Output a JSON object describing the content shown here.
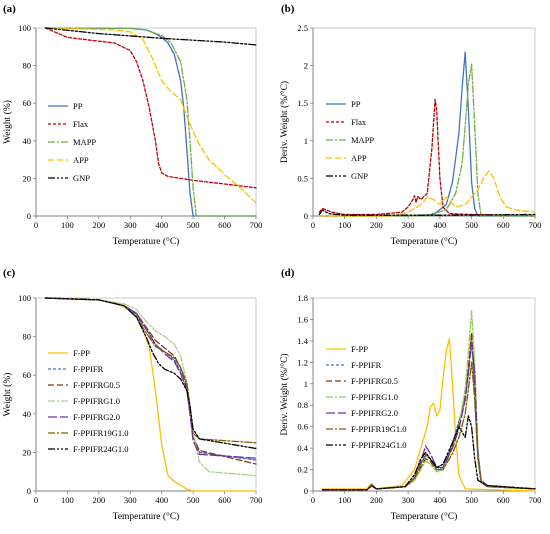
{
  "figure": {
    "panels": [
      "(a)",
      "(b)",
      "(c)",
      "(d)"
    ]
  },
  "chart_data": [
    {
      "panel": "(a)",
      "type": "line",
      "xlabel": "Temperature (°C)",
      "ylabel": "Weight (%)",
      "xlim": [
        0,
        700
      ],
      "ylim": [
        0,
        100
      ],
      "xticks": [
        0,
        100,
        200,
        300,
        400,
        500,
        600,
        700
      ],
      "yticks": [
        0,
        20,
        40,
        60,
        80,
        100
      ],
      "legend_position": "left",
      "series": [
        {
          "name": "PP",
          "color": "#4472c4",
          "dash": "solid",
          "x": [
            30,
            300,
            350,
            380,
            400,
            420,
            440,
            460,
            470,
            480,
            490,
            500,
            700
          ],
          "y": [
            100,
            99.8,
            99,
            97,
            95,
            92,
            86,
            72,
            58,
            35,
            12,
            0,
            0
          ]
        },
        {
          "name": "Flax",
          "color": "#c00000",
          "dash": "shortdash",
          "x": [
            30,
            100,
            200,
            250,
            300,
            320,
            340,
            360,
            380,
            390,
            400,
            420,
            500,
            600,
            700
          ],
          "y": [
            100,
            95,
            93,
            92,
            88,
            82,
            72,
            58,
            40,
            28,
            23,
            21,
            19,
            17,
            15
          ]
        },
        {
          "name": "MAPP",
          "color": "#70ad47",
          "dash": "dashdot",
          "x": [
            30,
            300,
            350,
            400,
            430,
            460,
            480,
            490,
            500,
            510,
            700
          ],
          "y": [
            100,
            99.8,
            99,
            96,
            92,
            82,
            62,
            40,
            15,
            0,
            0
          ]
        },
        {
          "name": "APP",
          "color": "#ffc000",
          "dash": "dash",
          "x": [
            30,
            250,
            300,
            340,
            370,
            400,
            430,
            460,
            480,
            500,
            520,
            550,
            600,
            650,
            700
          ],
          "y": [
            100,
            99,
            98,
            94,
            84,
            72,
            66,
            62,
            53,
            45,
            38,
            30,
            22,
            15,
            7
          ]
        },
        {
          "name": "GNP",
          "color": "#000000",
          "dash": "dashdotdot",
          "x": [
            30,
            200,
            400,
            600,
            700
          ],
          "y": [
            100,
            97,
            94.5,
            92.5,
            91
          ]
        }
      ]
    },
    {
      "panel": "(b)",
      "type": "line",
      "xlabel": "Temperature (°C)",
      "ylabel": "Deriv. Weight (%/°C)",
      "xlim": [
        0,
        700
      ],
      "ylim": [
        0,
        2.5
      ],
      "xticks": [
        0,
        100,
        200,
        300,
        400,
        500,
        600,
        700
      ],
      "yticks": [
        0,
        0.5,
        1,
        1.5,
        2,
        2.5
      ],
      "ytick_labels": [
        "0",
        "0.5",
        "1",
        "1.5",
        "2",
        "2.5"
      ],
      "legend_position": "left",
      "series": [
        {
          "name": "PP",
          "color": "#4472c4",
          "dash": "solid",
          "x": [
            20,
            300,
            380,
            420,
            440,
            460,
            470,
            480,
            490,
            500,
            510,
            520,
            700
          ],
          "y": [
            0,
            0,
            0.02,
            0.15,
            0.45,
            1.1,
            1.7,
            2.18,
            1.4,
            0.45,
            0.1,
            0,
            0
          ]
        },
        {
          "name": "Flax",
          "color": "#c00000",
          "dash": "shortdash",
          "x": [
            20,
            30,
            60,
            100,
            200,
            280,
            300,
            315,
            320,
            325,
            330,
            340,
            360,
            375,
            385,
            390,
            400,
            410,
            430,
            500,
            600,
            700
          ],
          "y": [
            0.05,
            0.1,
            0.05,
            0.02,
            0.02,
            0.05,
            0.12,
            0.22,
            0.27,
            0.18,
            0.26,
            0.22,
            0.3,
            0.9,
            1.55,
            1.4,
            0.5,
            0.12,
            0.03,
            0.02,
            0.01,
            0
          ]
        },
        {
          "name": "MAPP",
          "color": "#70ad47",
          "dash": "dashdot",
          "x": [
            20,
            350,
            420,
            450,
            470,
            480,
            490,
            500,
            510,
            520,
            530,
            700
          ],
          "y": [
            0,
            0,
            0.08,
            0.3,
            0.7,
            1.2,
            1.75,
            2.02,
            1.2,
            0.3,
            0,
            0
          ]
        },
        {
          "name": "APP",
          "color": "#ffc000",
          "dash": "dash",
          "x": [
            20,
            250,
            300,
            320,
            340,
            360,
            380,
            400,
            420,
            450,
            480,
            500,
            520,
            540,
            555,
            570,
            590,
            610,
            640,
            700
          ],
          "y": [
            0,
            0,
            0.05,
            0.1,
            0.15,
            0.25,
            0.22,
            0.15,
            0.25,
            0.12,
            0.15,
            0.25,
            0.35,
            0.52,
            0.6,
            0.5,
            0.25,
            0.12,
            0.08,
            0.05
          ]
        },
        {
          "name": "GNP",
          "color": "#000000",
          "dash": "dashdotdot",
          "x": [
            20,
            30,
            50,
            100,
            200,
            400,
            700
          ],
          "y": [
            0.02,
            0.08,
            0.03,
            0.01,
            0.01,
            0.01,
            0.02
          ]
        }
      ]
    },
    {
      "panel": "(c)",
      "type": "line",
      "xlabel": "Temperature (°C)",
      "ylabel": "Weight (%)",
      "xlim": [
        0,
        700
      ],
      "ylim": [
        0,
        100
      ],
      "xticks": [
        0,
        100,
        200,
        300,
        400,
        500,
        600,
        700
      ],
      "yticks": [
        0,
        20,
        40,
        60,
        80,
        100
      ],
      "legend_position": "left",
      "series": [
        {
          "name": "F-PP",
          "color": "#ffc000",
          "dash": "solid",
          "x": [
            30,
            200,
            250,
            300,
            330,
            360,
            380,
            400,
            420,
            440,
            460,
            480,
            500,
            700
          ],
          "y": [
            100,
            99,
            97.5,
            94,
            88,
            75,
            52,
            24,
            8,
            5,
            3,
            1,
            0,
            0
          ]
        },
        {
          "name": "F-PPIFR",
          "color": "#4472c4",
          "dash": "shortdash",
          "x": [
            30,
            200,
            280,
            320,
            350,
            380,
            410,
            440,
            460,
            480,
            490,
            500,
            520,
            700
          ],
          "y": [
            100,
            99,
            96,
            91,
            84,
            76,
            72,
            68,
            62,
            52,
            40,
            28,
            20,
            16
          ]
        },
        {
          "name": "F-PPIFRG0.5",
          "color": "#843c0c",
          "dash": "dash",
          "x": [
            30,
            200,
            280,
            320,
            350,
            380,
            410,
            440,
            460,
            480,
            490,
            500,
            520,
            700
          ],
          "y": [
            100,
            99,
            96,
            92,
            85,
            78,
            74,
            70,
            64,
            54,
            42,
            28,
            21,
            14
          ]
        },
        {
          "name": "F-PPIFRG1.0",
          "color": "#a9d18e",
          "dash": "dashdot",
          "x": [
            30,
            200,
            280,
            320,
            350,
            380,
            410,
            440,
            460,
            480,
            500,
            520,
            550,
            700
          ],
          "y": [
            100,
            99,
            97,
            94,
            88,
            83,
            80,
            76,
            70,
            56,
            30,
            15,
            10,
            8
          ]
        },
        {
          "name": "F-PPIFRG2.0",
          "color": "#7030a0",
          "dash": "longdash",
          "x": [
            30,
            200,
            280,
            320,
            350,
            380,
            410,
            440,
            460,
            480,
            490,
            500,
            520,
            700
          ],
          "y": [
            100,
            99,
            96,
            92,
            84,
            76,
            71,
            67,
            61,
            52,
            40,
            26,
            19,
            17
          ]
        },
        {
          "name": "F-PPIFR19G1.0",
          "color": "#7f6000",
          "dash": "dashdot",
          "x": [
            30,
            200,
            280,
            320,
            350,
            380,
            410,
            440,
            460,
            480,
            490,
            500,
            520,
            700
          ],
          "y": [
            100,
            99,
            96,
            90,
            82,
            75,
            72,
            69,
            64,
            56,
            44,
            30,
            27,
            25
          ]
        },
        {
          "name": "F-PPIFR24G1.0",
          "color": "#000000",
          "dash": "dashdotdot",
          "x": [
            30,
            200,
            280,
            320,
            350,
            370,
            390,
            410,
            440,
            460,
            480,
            490,
            500,
            520,
            700
          ],
          "y": [
            100,
            99,
            96,
            90,
            80,
            72,
            66,
            63,
            61,
            58,
            52,
            44,
            32,
            27,
            22
          ]
        }
      ]
    },
    {
      "panel": "(d)",
      "type": "line",
      "xlabel": "Temperature (°C)",
      "ylabel": "Deriv. Weight (%/°C)",
      "xlim": [
        0,
        700
      ],
      "ylim": [
        0,
        1.8
      ],
      "xticks": [
        0,
        100,
        200,
        300,
        400,
        500,
        600,
        700
      ],
      "yticks": [
        0,
        0.2,
        0.4,
        0.6,
        0.8,
        1.0,
        1.2,
        1.4,
        1.6,
        1.8
      ],
      "ytick_labels": [
        "0",
        "0.2",
        "0.4",
        "0.6",
        "0.8",
        "1",
        "1.2",
        "1.4",
        "1.6",
        "1.8"
      ],
      "legend_position": "left",
      "series": [
        {
          "name": "F-PP",
          "color": "#ffc000",
          "dash": "solid",
          "x": [
            30,
            170,
            180,
            185,
            190,
            200,
            280,
            320,
            340,
            360,
            370,
            380,
            390,
            400,
            410,
            420,
            430,
            440,
            450,
            460,
            480,
            700
          ],
          "y": [
            0.02,
            0.02,
            0.06,
            0.07,
            0.05,
            0.02,
            0.05,
            0.2,
            0.4,
            0.6,
            0.78,
            0.82,
            0.7,
            0.75,
            1.05,
            1.3,
            1.42,
            1.0,
            0.5,
            0.15,
            0.02,
            0
          ]
        },
        {
          "name": "F-PPIFR",
          "color": "#4472c4",
          "dash": "shortdash",
          "x": [
            30,
            170,
            185,
            200,
            290,
            320,
            340,
            355,
            370,
            390,
            410,
            440,
            460,
            480,
            490,
            500,
            510,
            520,
            530,
            550,
            700
          ],
          "y": [
            0.01,
            0.01,
            0.06,
            0.02,
            0.04,
            0.12,
            0.25,
            0.35,
            0.3,
            0.2,
            0.22,
            0.45,
            0.65,
            0.85,
            1.1,
            1.45,
            0.9,
            0.3,
            0.08,
            0.04,
            0.02
          ]
        },
        {
          "name": "F-PPIFRG0.5",
          "color": "#843c0c",
          "dash": "dash",
          "x": [
            30,
            170,
            185,
            200,
            290,
            320,
            340,
            355,
            370,
            390,
            410,
            440,
            460,
            480,
            490,
            500,
            510,
            520,
            530,
            550,
            700
          ],
          "y": [
            0.01,
            0.01,
            0.05,
            0.02,
            0.04,
            0.1,
            0.22,
            0.3,
            0.28,
            0.18,
            0.2,
            0.42,
            0.62,
            0.9,
            1.15,
            1.48,
            1.0,
            0.35,
            0.1,
            0.05,
            0.02
          ]
        },
        {
          "name": "F-PPIFRG1.0",
          "color": "#92d050",
          "dash": "dashdot",
          "x": [
            30,
            170,
            185,
            200,
            290,
            320,
            340,
            355,
            370,
            390,
            410,
            440,
            460,
            480,
            490,
            500,
            510,
            520,
            530,
            550,
            700
          ],
          "y": [
            0.01,
            0.01,
            0.05,
            0.02,
            0.04,
            0.1,
            0.2,
            0.28,
            0.25,
            0.18,
            0.2,
            0.4,
            0.6,
            0.95,
            1.3,
            1.68,
            1.2,
            0.4,
            0.1,
            0.04,
            0.02
          ]
        },
        {
          "name": "F-PPIFRG2.0",
          "color": "#7030a0",
          "dash": "longdash",
          "x": [
            30,
            170,
            185,
            200,
            290,
            320,
            340,
            355,
            370,
            390,
            410,
            440,
            460,
            480,
            490,
            500,
            510,
            520,
            530,
            550,
            700
          ],
          "y": [
            0.01,
            0.01,
            0.05,
            0.02,
            0.04,
            0.12,
            0.28,
            0.42,
            0.35,
            0.22,
            0.22,
            0.4,
            0.58,
            0.85,
            1.1,
            1.38,
            1.1,
            0.35,
            0.1,
            0.05,
            0.02
          ]
        },
        {
          "name": "F-PPIFR19G1.0",
          "color": "#7f6000",
          "dash": "dashdot",
          "x": [
            30,
            170,
            185,
            200,
            290,
            320,
            340,
            355,
            370,
            390,
            410,
            440,
            460,
            480,
            490,
            500,
            510,
            520,
            530,
            550,
            700
          ],
          "y": [
            0.01,
            0.01,
            0.05,
            0.02,
            0.04,
            0.12,
            0.25,
            0.33,
            0.3,
            0.2,
            0.2,
            0.35,
            0.5,
            0.72,
            0.95,
            1.2,
            0.85,
            0.3,
            0.08,
            0.04,
            0.02
          ]
        },
        {
          "name": "F-PPIFR24G1.0",
          "color": "#000000",
          "dash": "dashdotdot",
          "x": [
            30,
            170,
            185,
            200,
            290,
            320,
            340,
            355,
            370,
            390,
            410,
            440,
            460,
            470,
            480,
            490,
            500,
            510,
            520,
            550,
            700
          ],
          "y": [
            0.01,
            0.01,
            0.05,
            0.02,
            0.04,
            0.15,
            0.3,
            0.36,
            0.3,
            0.22,
            0.25,
            0.45,
            0.6,
            0.55,
            0.5,
            0.7,
            0.6,
            0.3,
            0.1,
            0.05,
            0.02
          ]
        }
      ]
    }
  ]
}
